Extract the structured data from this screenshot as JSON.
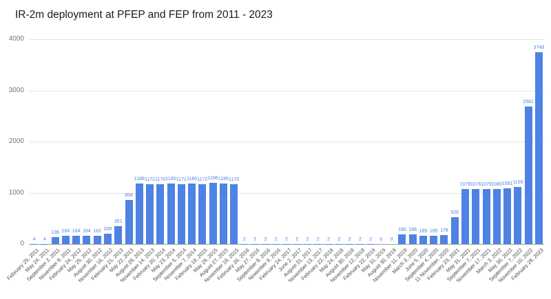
{
  "page": {
    "background_color": "#ffffff"
  },
  "chart_data": {
    "type": "bar",
    "title": "IR-2m deployment at PFEP and FEP from 2011 - 2023",
    "xlabel": "",
    "ylabel": "",
    "ylim": [
      0,
      4000
    ],
    "yticks": [
      0,
      1000,
      2000,
      3000,
      4000
    ],
    "grid": true,
    "legend": "none",
    "bar_color": "#4e82e5",
    "value_label_color": "#4e82e5",
    "axis_text_color": "#757575",
    "baseline_color": "#9e9e9e",
    "gridline_color": "#e4e4e4",
    "categories": [
      "February 25, 2011",
      "May 24, 2011",
      "September 2, 2011",
      "November 8, 2011",
      "February 24, 2012",
      "May 25, 2012",
      "August 30, 2012",
      "November 16, 2012",
      "February 21, 2013",
      "May 22, 2013",
      "August 28, 2013",
      "November 14, 2013",
      "February 20, 2014",
      "May 23, 2014",
      "September 5, 2014",
      "November 7, 2014",
      "February 19, 2015",
      "May 29, 2015",
      "August 27, 2015",
      "November 18, 2015",
      "February 26, 2016",
      "May 27, 2016",
      "September 8, 2016",
      "November 9, 2016",
      "February 24, 2017",
      "June 2, 2017",
      "August 31, 2017",
      "November 13, 2017",
      "February 22, 2018",
      "May 24, 2018",
      "August 30, 2018",
      "November 12, 2018",
      "February 22, 2019",
      "May 31, 2019",
      "August 30, 2019",
      "November 11, 2019",
      "March 3, 2020",
      "June 5, 2020",
      "September 4, 2020",
      "11 November, 2020",
      "February 23, 2021",
      "May 31, 2021",
      "September 7, 2021",
      "November 17, 2021",
      "March 3, 2022",
      "May 30, 2022",
      "September 7, 2022",
      "November 10, 2022",
      "February 28, 2023"
    ],
    "values": [
      4,
      4,
      136,
      164,
      164,
      164,
      162,
      208,
      351,
      854,
      1188,
      1172,
      1170,
      1180,
      1171,
      1180,
      1172,
      1196,
      1180,
      1170,
      2,
      2,
      2,
      2,
      2,
      2,
      2,
      2,
      2,
      2,
      2,
      2,
      2,
      0,
      0,
      186,
      186,
      165,
      165,
      178,
      526,
      1078,
      1076,
      1079,
      1080,
      1081,
      1109,
      2681,
      3749
    ]
  }
}
